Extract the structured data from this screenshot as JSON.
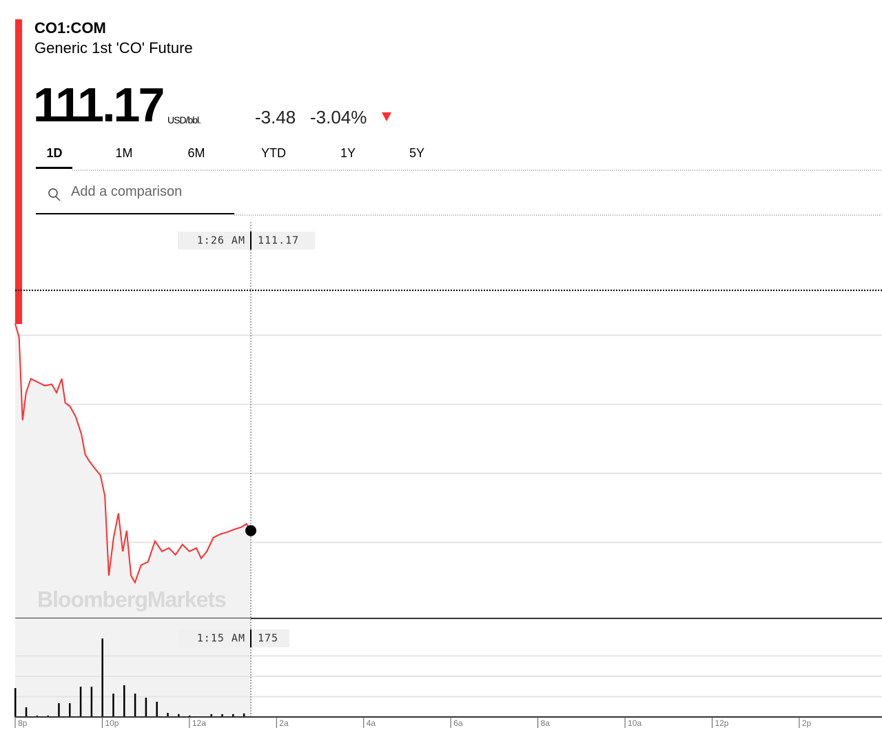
{
  "header": {
    "symbol": "CO1:COM",
    "name": "Generic 1st 'CO' Future",
    "price": "111.17",
    "unit": "USD/bbl.",
    "change": "-3.48",
    "change_pct": "-3.04%",
    "tabs": [
      "1D",
      "1M",
      "6M",
      "YTD",
      "1Y",
      "5Y"
    ],
    "search_placeholder": "Add a comparison"
  },
  "chart_data": [
    {
      "type": "line",
      "color": "#ff2d2d",
      "x": [
        0,
        0.09,
        0.17,
        0.25,
        0.36,
        0.52,
        0.68,
        0.84,
        0.95,
        1.07,
        1.15,
        1.26,
        1.39,
        1.52,
        1.61,
        1.71,
        1.83,
        1.96,
        2.06,
        2.15,
        2.26,
        2.37,
        2.47,
        2.56,
        2.66,
        2.75,
        2.89,
        3.05,
        3.21,
        3.37,
        3.53,
        3.68,
        3.84,
        4.0,
        4.16,
        4.27,
        4.4,
        4.55,
        4.71,
        4.87,
        5.03,
        5.19,
        5.31,
        5.41
      ],
      "values": [
        114.17,
        113.97,
        112.77,
        113.17,
        113.37,
        113.32,
        113.27,
        113.29,
        113.17,
        113.37,
        113.02,
        112.97,
        112.82,
        112.57,
        112.27,
        112.17,
        112.07,
        111.97,
        111.67,
        110.52,
        111.07,
        111.42,
        110.87,
        111.17,
        110.52,
        110.42,
        110.67,
        110.72,
        111.02,
        110.87,
        110.92,
        110.82,
        110.97,
        110.87,
        110.92,
        110.77,
        110.87,
        111.07,
        111.12,
        111.15,
        111.19,
        111.22,
        111.27,
        111.17
      ],
      "xlim": [
        0,
        19.9
      ],
      "ylim": [
        109.9,
        115.66
      ],
      "gridlines": [
        111,
        112,
        113,
        114
      ],
      "previous_close": 114.65,
      "watermark": "BloombergMarkets",
      "crosshair": {
        "time": "1:26 AM",
        "value": "111.17"
      }
    },
    {
      "type": "bar",
      "color": "#000000",
      "x": [
        0,
        0.25,
        0.5,
        0.75,
        1,
        1.25,
        1.5,
        1.75,
        2,
        2.25,
        2.5,
        2.75,
        3,
        3.25,
        3.5,
        3.75,
        4,
        4.5,
        4.75,
        5,
        5.25
      ],
      "values": [
        1420,
        475,
        70,
        70,
        680,
        680,
        1490,
        1490,
        3860,
        1150,
        1560,
        1150,
        950,
        750,
        200,
        140,
        70,
        140,
        140,
        140,
        175
      ],
      "xlim": [
        0,
        19.9
      ],
      "ylim": [
        0,
        4850
      ],
      "gridlines": [
        1000,
        2000,
        3000
      ],
      "xticks": [
        {
          "value": 0,
          "label": "8p"
        },
        {
          "value": 2,
          "label": "10p"
        },
        {
          "value": 4,
          "label": "12a"
        },
        {
          "value": 6,
          "label": "2a"
        },
        {
          "value": 8,
          "label": "4a"
        },
        {
          "value": 10,
          "label": "6a"
        },
        {
          "value": 12,
          "label": "8a"
        },
        {
          "value": 14,
          "label": "10a"
        },
        {
          "value": 16,
          "label": "12p"
        },
        {
          "value": 18,
          "label": "2p"
        }
      ],
      "crosshair": {
        "time": "1:15 AM",
        "value": "175"
      }
    }
  ]
}
